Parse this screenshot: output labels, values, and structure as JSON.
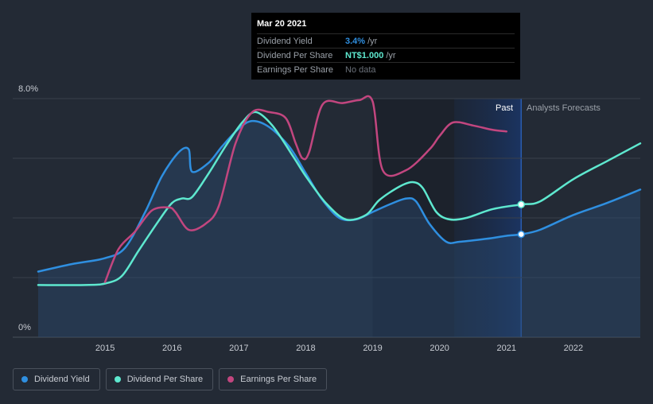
{
  "chart_data": {
    "type": "line",
    "ylim": [
      0,
      8.0
    ],
    "y_tick_labels": [
      "8.0%",
      "0%"
    ],
    "x_tick_labels": [
      "2015",
      "2016",
      "2017",
      "2018",
      "2019",
      "2020",
      "2021",
      "2022"
    ],
    "past_label": "Past",
    "forecast_label": "Analysts Forecasts",
    "past_end": 2021.22,
    "shaded_past_start": 2020.22,
    "series": [
      {
        "name": "Dividend Yield",
        "color": "#2f8fe0",
        "unit": "%",
        "filled": true,
        "points": [
          [
            2014.0,
            2.2
          ],
          [
            2014.5,
            2.45
          ],
          [
            2015.0,
            2.65
          ],
          [
            2015.3,
            3.0
          ],
          [
            2015.6,
            4.2
          ],
          [
            2015.85,
            5.4
          ],
          [
            2016.1,
            6.2
          ],
          [
            2016.25,
            6.3
          ],
          [
            2016.3,
            5.55
          ],
          [
            2016.55,
            5.85
          ],
          [
            2016.75,
            6.4
          ],
          [
            2017.0,
            7.0
          ],
          [
            2017.2,
            7.25
          ],
          [
            2017.45,
            7.05
          ],
          [
            2017.75,
            6.4
          ],
          [
            2018.0,
            5.5
          ],
          [
            2018.25,
            4.6
          ],
          [
            2018.5,
            4.0
          ],
          [
            2018.75,
            3.95
          ],
          [
            2019.0,
            4.2
          ],
          [
            2019.25,
            4.45
          ],
          [
            2019.5,
            4.65
          ],
          [
            2019.65,
            4.55
          ],
          [
            2019.85,
            3.8
          ],
          [
            2020.1,
            3.2
          ],
          [
            2020.3,
            3.2
          ],
          [
            2020.7,
            3.3
          ],
          [
            2021.0,
            3.4
          ],
          [
            2021.22,
            3.45
          ],
          [
            2021.5,
            3.6
          ],
          [
            2022.0,
            4.1
          ],
          [
            2022.5,
            4.5
          ],
          [
            2023.0,
            4.95
          ]
        ],
        "forecast_from": 2021.22
      },
      {
        "name": "Dividend Per Share",
        "color": "#5ee8cf",
        "unit": "NT$",
        "filled": false,
        "points": [
          [
            2014.0,
            1.75
          ],
          [
            2014.7,
            1.75
          ],
          [
            2015.0,
            1.8
          ],
          [
            2015.25,
            2.05
          ],
          [
            2015.5,
            2.9
          ],
          [
            2015.8,
            3.9
          ],
          [
            2016.0,
            4.5
          ],
          [
            2016.15,
            4.65
          ],
          [
            2016.3,
            4.7
          ],
          [
            2016.55,
            5.5
          ],
          [
            2016.8,
            6.4
          ],
          [
            2017.05,
            7.2
          ],
          [
            2017.25,
            7.55
          ],
          [
            2017.5,
            7.1
          ],
          [
            2017.8,
            6.1
          ],
          [
            2018.0,
            5.4
          ],
          [
            2018.3,
            4.5
          ],
          [
            2018.6,
            3.95
          ],
          [
            2018.9,
            4.1
          ],
          [
            2019.1,
            4.6
          ],
          [
            2019.4,
            5.05
          ],
          [
            2019.6,
            5.2
          ],
          [
            2019.75,
            5.0
          ],
          [
            2019.95,
            4.2
          ],
          [
            2020.15,
            3.95
          ],
          [
            2020.4,
            4.0
          ],
          [
            2020.8,
            4.3
          ],
          [
            2021.22,
            4.45
          ],
          [
            2021.5,
            4.55
          ],
          [
            2022.0,
            5.3
          ],
          [
            2022.5,
            5.9
          ],
          [
            2023.0,
            6.5
          ]
        ],
        "forecast_from": 2021.22
      },
      {
        "name": "Earnings Per Share",
        "color": "#c2467f",
        "unit": "NT$",
        "filled": false,
        "points": [
          [
            2015.0,
            1.85
          ],
          [
            2015.2,
            2.95
          ],
          [
            2015.45,
            3.55
          ],
          [
            2015.7,
            4.25
          ],
          [
            2015.95,
            4.35
          ],
          [
            2016.05,
            4.2
          ],
          [
            2016.25,
            3.6
          ],
          [
            2016.5,
            3.8
          ],
          [
            2016.7,
            4.4
          ],
          [
            2016.95,
            6.5
          ],
          [
            2017.2,
            7.55
          ],
          [
            2017.45,
            7.55
          ],
          [
            2017.7,
            7.35
          ],
          [
            2017.85,
            6.5
          ],
          [
            2017.95,
            6.0
          ],
          [
            2018.05,
            6.2
          ],
          [
            2018.25,
            7.8
          ],
          [
            2018.55,
            7.85
          ],
          [
            2018.8,
            7.95
          ],
          [
            2019.0,
            7.9
          ],
          [
            2019.15,
            5.6
          ],
          [
            2019.5,
            5.6
          ],
          [
            2019.85,
            6.3
          ],
          [
            2020.0,
            6.75
          ],
          [
            2020.2,
            7.2
          ],
          [
            2020.5,
            7.1
          ],
          [
            2020.8,
            6.95
          ],
          [
            2021.0,
            6.9
          ]
        ],
        "forecast_from": null
      }
    ]
  },
  "tooltip": {
    "date": "Mar 20 2021",
    "rows": [
      {
        "label": "Dividend Yield",
        "value": "3.4%",
        "unit": "/yr",
        "color": "#2f8fe0"
      },
      {
        "label": "Dividend Per Share",
        "value": "NT$1.000",
        "unit": "/yr",
        "color": "#5ee8cf"
      },
      {
        "label": "Earnings Per Share",
        "value": "",
        "nodata": "No data",
        "unit": "",
        "color": "#6b717a"
      }
    ]
  },
  "legend": [
    {
      "label": "Dividend Yield",
      "color": "#2f8fe0"
    },
    {
      "label": "Dividend Per Share",
      "color": "#5ee8cf"
    },
    {
      "label": "Earnings Per Share",
      "color": "#c2467f"
    }
  ]
}
